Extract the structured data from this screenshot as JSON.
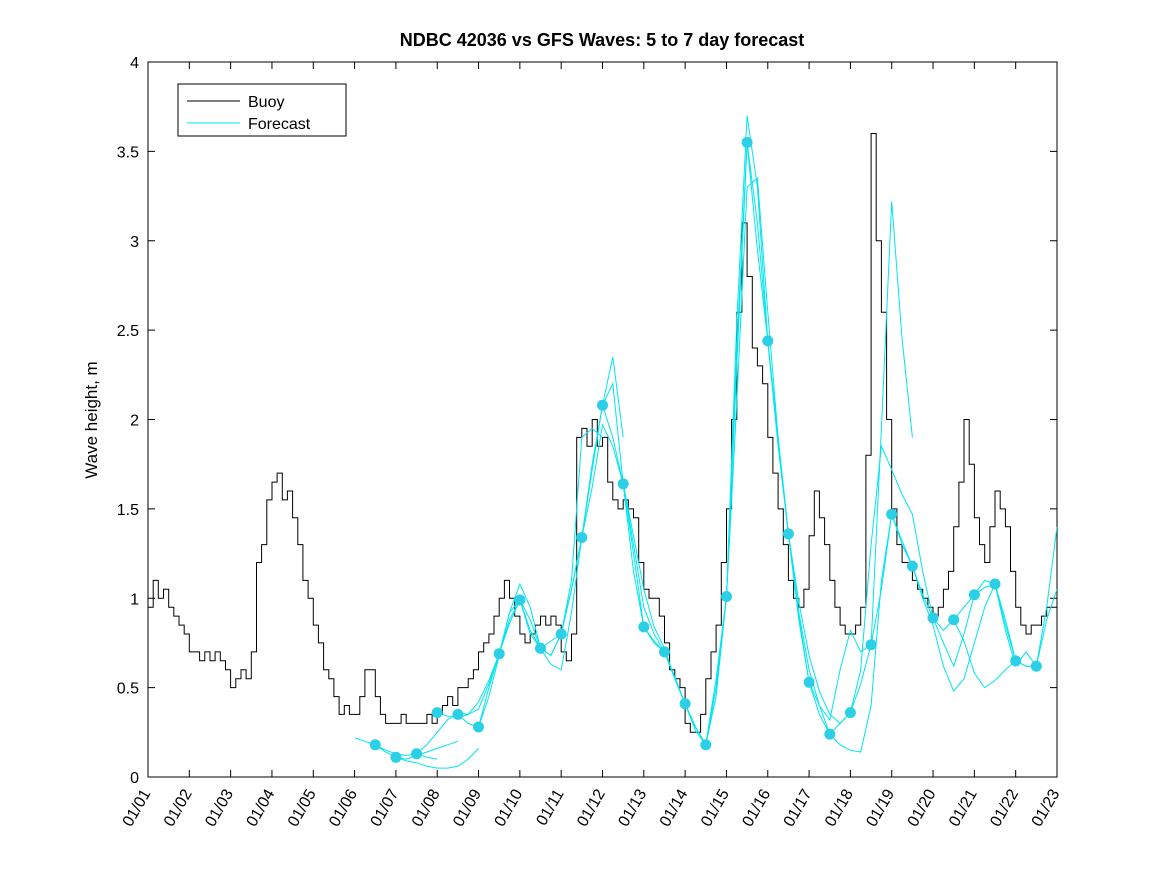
{
  "chart_data": {
    "type": "line",
    "title": "NDBC 42036 vs GFS Waves: 5 to 7 day forecast",
    "xlabel": "",
    "ylabel": "Wave height, m",
    "xlim": [
      1,
      23
    ],
    "ylim": [
      0,
      4
    ],
    "grid": false,
    "legend_position": "top-left",
    "x_units": "day of January (01/01 = 1)",
    "xticks": [
      1,
      2,
      3,
      4,
      5,
      6,
      7,
      8,
      9,
      10,
      11,
      12,
      13,
      14,
      15,
      16,
      17,
      18,
      19,
      20,
      21,
      22,
      23
    ],
    "xtick_labels": [
      "01/01",
      "01/02",
      "01/03",
      "01/04",
      "01/05",
      "01/06",
      "01/07",
      "01/08",
      "01/09",
      "01/10",
      "01/11",
      "01/12",
      "01/13",
      "01/14",
      "01/15",
      "01/16",
      "01/17",
      "01/18",
      "01/19",
      "01/20",
      "01/21",
      "01/22",
      "01/23"
    ],
    "yticks": [
      0,
      0.5,
      1,
      1.5,
      2,
      2.5,
      3,
      3.5,
      4
    ],
    "ytick_labels": [
      "0",
      "0.5",
      "1",
      "1.5",
      "2",
      "2.5",
      "3",
      "3.5",
      "4"
    ],
    "series": [
      {
        "name": "Buoy",
        "type": "step",
        "color": "#000000",
        "x_start": 1,
        "x_step": 0.125,
        "values": [
          0.95,
          1.1,
          1.0,
          1.05,
          0.95,
          0.9,
          0.85,
          0.8,
          0.7,
          0.7,
          0.65,
          0.7,
          0.65,
          0.7,
          0.65,
          0.6,
          0.5,
          0.55,
          0.6,
          0.55,
          0.7,
          1.2,
          1.3,
          1.55,
          1.65,
          1.7,
          1.55,
          1.6,
          1.45,
          1.3,
          1.1,
          1.0,
          0.85,
          0.75,
          0.6,
          0.55,
          0.45,
          0.35,
          0.4,
          0.35,
          0.35,
          0.45,
          0.6,
          0.6,
          0.45,
          0.35,
          0.3,
          0.3,
          0.3,
          0.35,
          0.3,
          0.3,
          0.3,
          0.3,
          0.35,
          0.3,
          0.35,
          0.4,
          0.45,
          0.4,
          0.5,
          0.5,
          0.55,
          0.6,
          0.7,
          0.75,
          0.8,
          0.9,
          1.0,
          1.1,
          1.0,
          0.9,
          0.8,
          0.75,
          0.8,
          0.85,
          0.9,
          0.85,
          0.9,
          0.85,
          0.7,
          0.65,
          0.8,
          1.9,
          1.95,
          1.85,
          2.0,
          1.85,
          1.9,
          1.65,
          1.55,
          1.5,
          1.55,
          1.5,
          1.45,
          1.2,
          1.05,
          1.0,
          1.0,
          0.9,
          0.75,
          0.6,
          0.55,
          0.5,
          0.3,
          0.25,
          0.25,
          0.35,
          0.55,
          0.7,
          0.85,
          1.2,
          1.5,
          2.0,
          2.6,
          3.1,
          2.8,
          2.4,
          2.3,
          2.2,
          1.9,
          1.7,
          1.5,
          1.3,
          1.1,
          1.0,
          0.95,
          1.05,
          1.35,
          1.6,
          1.45,
          1.3,
          1.1,
          0.95,
          0.85,
          0.8,
          0.8,
          0.85,
          0.95,
          1.8,
          3.6,
          3.0,
          2.6,
          2.0,
          1.5,
          1.3,
          1.2,
          1.2,
          1.1,
          1.05,
          1.0,
          0.95,
          0.9,
          0.95,
          1.05,
          1.15,
          1.4,
          1.65,
          2.0,
          1.75,
          1.45,
          1.3,
          1.2,
          1.4,
          1.6,
          1.5,
          1.4,
          1.15,
          0.95,
          0.85,
          0.8,
          0.85,
          0.85,
          0.9,
          0.95,
          0.95,
          1.0
        ]
      },
      {
        "name": "Forecast",
        "type": "multi_segment_line",
        "color": "#00e5ee",
        "marker_color": "#2bcfe6",
        "runs": [
          {
            "x": [
              6,
              6.25,
              6.5,
              6.75,
              7,
              7.25,
              7.5,
              7.75,
              8
            ],
            "y": [
              0.22,
              0.2,
              0.18,
              0.15,
              0.13,
              0.12,
              0.13,
              0.11,
              0.1
            ]
          },
          {
            "x": [
              6.5,
              6.75,
              7,
              7.25,
              7.5,
              7.75,
              8,
              8.25,
              8.5
            ],
            "y": [
              0.18,
              0.14,
              0.11,
              0.1,
              0.12,
              0.14,
              0.16,
              0.18,
              0.2
            ]
          },
          {
            "x": [
              7,
              7.25,
              7.5,
              7.75,
              8,
              8.25,
              8.5,
              8.75,
              9
            ],
            "y": [
              0.11,
              0.09,
              0.08,
              0.06,
              0.05,
              0.05,
              0.06,
              0.1,
              0.16
            ]
          },
          {
            "x": [
              7.5,
              7.75,
              8,
              8.25,
              8.5,
              8.75,
              9,
              9.25,
              9.5
            ],
            "y": [
              0.13,
              0.18,
              0.25,
              0.32,
              0.36,
              0.35,
              0.38,
              0.52,
              0.69
            ]
          },
          {
            "x": [
              8,
              8.25,
              8.5,
              8.75,
              9,
              9.25,
              9.5,
              9.75,
              10
            ],
            "y": [
              0.36,
              0.34,
              0.33,
              0.35,
              0.42,
              0.54,
              0.69,
              0.86,
              0.99
            ]
          },
          {
            "x": [
              8.5,
              8.75,
              9,
              9.25,
              9.5,
              9.75,
              10,
              10.25,
              10.5
            ],
            "y": [
              0.35,
              0.3,
              0.28,
              0.45,
              0.68,
              0.92,
              1.08,
              0.95,
              0.72
            ]
          },
          {
            "x": [
              9,
              9.25,
              9.5,
              9.75,
              10,
              10.25,
              10.5,
              10.75,
              11
            ],
            "y": [
              0.28,
              0.5,
              0.69,
              0.92,
              0.99,
              0.88,
              0.72,
              0.68,
              0.8
            ]
          },
          {
            "x": [
              9.5,
              9.75,
              10,
              10.25,
              10.5,
              10.75,
              11,
              11.25,
              11.5
            ],
            "y": [
              0.69,
              0.88,
              0.99,
              0.8,
              0.72,
              0.63,
              0.6,
              0.92,
              1.34
            ]
          },
          {
            "x": [
              10,
              10.25,
              10.5,
              10.75,
              11,
              11.25,
              11.5,
              11.75,
              12
            ],
            "y": [
              0.99,
              0.82,
              0.72,
              0.76,
              0.8,
              1.1,
              1.9,
              1.95,
              1.9
            ]
          },
          {
            "x": [
              10.5,
              10.75,
              11,
              11.25,
              11.5,
              11.75,
              12,
              12.25,
              12.5
            ],
            "y": [
              0.72,
              0.68,
              0.8,
              1.05,
              1.34,
              1.75,
              2.08,
              2.35,
              1.9
            ]
          },
          {
            "x": [
              11,
              11.25,
              11.5,
              11.75,
              12,
              12.25,
              12.5,
              12.75,
              13
            ],
            "y": [
              0.8,
              1.05,
              1.34,
              1.72,
              2.08,
              2.2,
              1.64,
              1.15,
              0.84
            ]
          },
          {
            "x": [
              11.5,
              11.75,
              12,
              12.25,
              12.5,
              12.75,
              13,
              13.25,
              13.5
            ],
            "y": [
              1.34,
              1.62,
              1.97,
              1.85,
              1.64,
              1.25,
              0.84,
              0.75,
              0.7
            ]
          },
          {
            "x": [
              12,
              12.25,
              12.5,
              12.75,
              13,
              13.25,
              13.5,
              13.75,
              14
            ],
            "y": [
              2.08,
              1.9,
              1.64,
              1.3,
              0.95,
              0.8,
              0.7,
              0.55,
              0.41
            ]
          },
          {
            "x": [
              12.5,
              12.75,
              13,
              13.25,
              13.5,
              13.75,
              14,
              14.25,
              14.5
            ],
            "y": [
              1.64,
              1.35,
              1.05,
              0.84,
              0.72,
              0.55,
              0.41,
              0.28,
              0.18
            ]
          },
          {
            "x": [
              13,
              13.25,
              13.5,
              13.75,
              14,
              14.25,
              14.5,
              14.75,
              15
            ],
            "y": [
              0.84,
              0.76,
              0.7,
              0.55,
              0.41,
              0.28,
              0.18,
              0.5,
              1.01
            ]
          },
          {
            "x": [
              13.5,
              13.75,
              14,
              14.25,
              14.5,
              14.75,
              15,
              15.25,
              15.5
            ],
            "y": [
              0.7,
              0.56,
              0.41,
              0.26,
              0.18,
              0.55,
              1.01,
              2.4,
              3.55
            ]
          },
          {
            "x": [
              14,
              14.25,
              14.5,
              14.75,
              15,
              15.25,
              15.5,
              15.75,
              16
            ],
            "y": [
              0.41,
              0.28,
              0.18,
              0.5,
              1.01,
              2.3,
              3.55,
              3.1,
              2.44
            ]
          },
          {
            "x": [
              14.5,
              14.75,
              15,
              15.25,
              15.5,
              15.75,
              16,
              16.25,
              16.5
            ],
            "y": [
              0.18,
              0.45,
              1.01,
              2.55,
              3.7,
              3.3,
              2.44,
              1.85,
              1.36
            ]
          },
          {
            "x": [
              15,
              15.25,
              15.5,
              15.75,
              16,
              16.25,
              16.5,
              16.75,
              17
            ],
            "y": [
              1.01,
              2.1,
              3.3,
              3.35,
              2.6,
              1.9,
              1.36,
              0.88,
              0.53
            ]
          },
          {
            "x": [
              15.5,
              15.75,
              16,
              16.25,
              16.5,
              16.75,
              17,
              17.25,
              17.5
            ],
            "y": [
              3.55,
              2.95,
              2.44,
              1.88,
              1.36,
              0.9,
              0.53,
              0.35,
              0.24
            ]
          },
          {
            "x": [
              16,
              16.25,
              16.5,
              16.75,
              17,
              17.25,
              17.5,
              17.75,
              18
            ],
            "y": [
              2.44,
              1.9,
              1.36,
              0.92,
              0.6,
              0.4,
              0.24,
              0.3,
              0.36
            ]
          },
          {
            "x": [
              16.5,
              16.75,
              17,
              17.25,
              17.5,
              17.75,
              18,
              18.25,
              18.5
            ],
            "y": [
              1.36,
              0.98,
              0.68,
              0.48,
              0.35,
              0.3,
              0.36,
              0.52,
              0.74
            ]
          },
          {
            "x": [
              17,
              17.25,
              17.5,
              17.75,
              18,
              18.25,
              18.5,
              18.75,
              19
            ],
            "y": [
              0.53,
              0.4,
              0.32,
              0.6,
              0.82,
              0.7,
              0.74,
              1.05,
              1.47
            ]
          },
          {
            "x": [
              17.5,
              17.75,
              18,
              18.25,
              18.5,
              18.75,
              19,
              19.25,
              19.5
            ],
            "y": [
              0.24,
              0.18,
              0.15,
              0.14,
              0.4,
              1.1,
              1.47,
              1.32,
              1.18
            ]
          },
          {
            "x": [
              18,
              18.25,
              18.5,
              18.75,
              19,
              19.25,
              19.5,
              19.75,
              20
            ],
            "y": [
              0.36,
              0.6,
              1.3,
              1.85,
              1.72,
              1.58,
              1.47,
              1.15,
              0.89
            ]
          },
          {
            "x": [
              18.5,
              18.75,
              19,
              19.25,
              19.5
            ],
            "y": [
              0.74,
              1.95,
              3.22,
              2.45,
              1.9
            ]
          },
          {
            "x": [
              19,
              19.25,
              19.5,
              19.75,
              20,
              20.25,
              20.5,
              20.75,
              21
            ],
            "y": [
              1.47,
              1.3,
              1.18,
              1.02,
              0.89,
              0.75,
              0.62,
              0.8,
              1.02
            ]
          },
          {
            "x": [
              19.5,
              19.75,
              20,
              20.25,
              20.5,
              20.75,
              21,
              21.25,
              21.5
            ],
            "y": [
              1.18,
              1.0,
              0.85,
              0.62,
              0.48,
              0.55,
              0.75,
              0.95,
              1.08
            ]
          },
          {
            "x": [
              20,
              20.25,
              20.5,
              20.75,
              21,
              21.25,
              21.5,
              21.75,
              22
            ],
            "y": [
              0.89,
              0.82,
              0.88,
              0.76,
              0.58,
              0.5,
              0.54,
              0.6,
              0.65
            ]
          },
          {
            "x": [
              20.5,
              20.75,
              21,
              21.25,
              21.5,
              21.75,
              22,
              22.25,
              22.5
            ],
            "y": [
              0.88,
              0.95,
              1.02,
              1.1,
              1.08,
              0.88,
              0.65,
              0.62,
              0.62
            ]
          },
          {
            "x": [
              21,
              21.25,
              21.5,
              21.75,
              22,
              22.25,
              22.5,
              22.75,
              23
            ],
            "y": [
              1.02,
              1.06,
              1.08,
              0.85,
              0.65,
              0.62,
              0.62,
              0.95,
              1.4
            ]
          },
          {
            "x": [
              21.5,
              21.75,
              22,
              22.25,
              22.5,
              22.75,
              23
            ],
            "y": [
              1.08,
              0.82,
              0.62,
              0.7,
              0.62,
              0.88,
              1.05
            ]
          }
        ],
        "markers": {
          "x": [
            6.5,
            7,
            7.5,
            8,
            8.5,
            9,
            9.5,
            10,
            10.5,
            11,
            11.5,
            12,
            12.5,
            13,
            13.5,
            14,
            14.5,
            15,
            15.5,
            16,
            16.5,
            17,
            17.5,
            18,
            18.5,
            19,
            19.5,
            20,
            20.5,
            21,
            21.5,
            22,
            22.5
          ],
          "y": [
            0.18,
            0.11,
            0.13,
            0.36,
            0.35,
            0.28,
            0.69,
            0.99,
            0.72,
            0.8,
            1.34,
            2.08,
            1.64,
            0.84,
            0.7,
            0.41,
            0.18,
            1.01,
            3.55,
            2.44,
            1.36,
            0.53,
            0.24,
            0.36,
            0.74,
            1.47,
            1.18,
            0.89,
            0.88,
            1.02,
            1.08,
            0.65,
            0.62
          ]
        }
      }
    ]
  }
}
